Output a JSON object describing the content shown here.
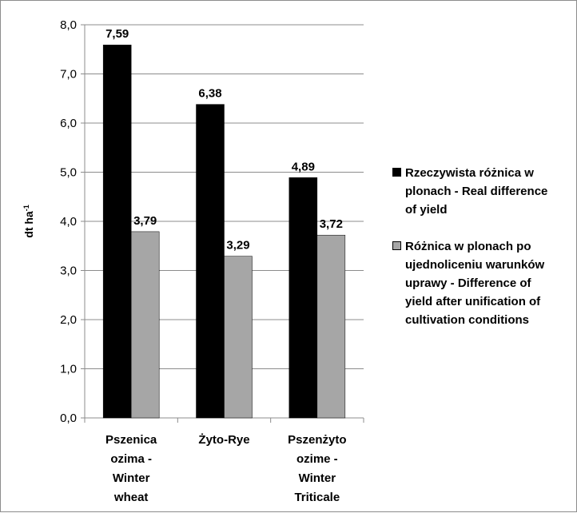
{
  "chart_data": {
    "type": "bar",
    "ylabel": "dt ha",
    "ylabel_sup": "-1",
    "ylim": [
      0,
      8
    ],
    "ytick_step": 1,
    "yticks": [
      "0,0",
      "1,0",
      "2,0",
      "3,0",
      "4,0",
      "5,0",
      "6,0",
      "7,0",
      "8,0"
    ],
    "grid": "horizontal",
    "legend_position": "right",
    "categories": [
      [
        "Pszenica",
        "ozima -",
        "Winter",
        "wheat"
      ],
      [
        "Żyto-Rye"
      ],
      [
        "Pszenżyto",
        "ozime -",
        "Winter",
        "Triticale"
      ]
    ],
    "series": [
      {
        "name": "Rzeczywista różnica w plonach - Real difference of yield",
        "legend_lines": [
          "Rzeczywista różnica w",
          "plonach - Real difference",
          "of yield"
        ],
        "values": [
          7.59,
          6.38,
          4.89
        ],
        "labels": [
          "7,59",
          "6,38",
          "4,89"
        ],
        "color": "#000000"
      },
      {
        "name": "Różnica w plonach po ujednoliceniu warunków uprawy - Difference of yield after unification of cultivation conditions",
        "legend_lines": [
          "Różnica w plonach po",
          "ujednoliceniu warunków",
          "uprawy - Difference of",
          "yield after unification of",
          "cultivation conditions"
        ],
        "values": [
          3.79,
          3.29,
          3.72
        ],
        "labels": [
          "3,79",
          "3,29",
          "3,72"
        ],
        "color": "#a6a6a6"
      }
    ]
  }
}
